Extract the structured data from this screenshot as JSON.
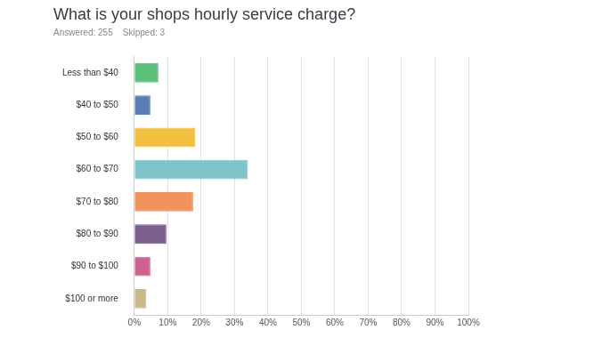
{
  "chart_data": {
    "type": "bar",
    "title": "What is your shops hourly service charge?",
    "subtitle": "Answered: 255    Skipped: 3",
    "orientation": "horizontal",
    "categories": [
      "Less than $40",
      "$40 to $50",
      "$50 to $60",
      "$60 to $70",
      "$70 to $80",
      "$80 to $90",
      "$90 to $100",
      "$100 or more"
    ],
    "values": [
      7.2,
      4.8,
      18.2,
      34,
      17.6,
      9.6,
      4.8,
      3.6
    ],
    "colors": [
      "#5cbf7a",
      "#5a7db5",
      "#f2c040",
      "#7fc4cb",
      "#f0935c",
      "#7a5f8f",
      "#cf6390",
      "#c9b98a"
    ],
    "xlim": [
      0,
      100
    ],
    "xticks": [
      {
        "value": 0,
        "label": "0%"
      },
      {
        "value": 10,
        "label": "10%"
      },
      {
        "value": 20,
        "label": "20%"
      },
      {
        "value": 30,
        "label": "30%"
      },
      {
        "value": 40,
        "label": "40%"
      },
      {
        "value": 50,
        "label": "50%"
      },
      {
        "value": 60,
        "label": "60%"
      },
      {
        "value": 70,
        "label": "70%"
      },
      {
        "value": 80,
        "label": "80%"
      },
      {
        "value": 90,
        "label": "90%"
      },
      {
        "value": 100,
        "label": "100%"
      }
    ],
    "grid": true
  }
}
